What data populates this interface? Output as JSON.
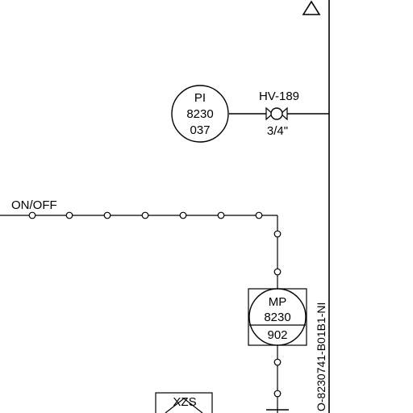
{
  "instruments": {
    "pi": {
      "function": "PI",
      "loop": "8230",
      "suffix": "037"
    },
    "mp": {
      "function": "MP",
      "loop": "8230",
      "suffix": "902"
    },
    "xzs": {
      "function": "XZS"
    }
  },
  "valve": {
    "tag": "HV-189",
    "size": "3/4\""
  },
  "signal": {
    "label": "ON/OFF"
  },
  "drawing": {
    "reference": "O-8230741-B01B1-NI"
  }
}
